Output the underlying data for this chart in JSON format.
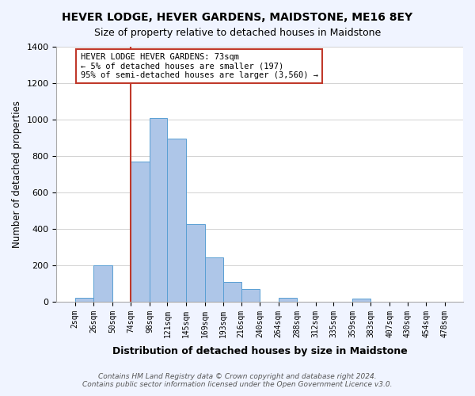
{
  "title": "HEVER LODGE, HEVER GARDENS, MAIDSTONE, ME16 8EY",
  "subtitle": "Size of property relative to detached houses in Maidstone",
  "xlabel": "Distribution of detached houses by size in Maidstone",
  "ylabel": "Number of detached properties",
  "bin_labels": [
    "2sqm",
    "26sqm",
    "50sqm",
    "74sqm",
    "98sqm",
    "121sqm",
    "145sqm",
    "169sqm",
    "193sqm",
    "216sqm",
    "240sqm",
    "264sqm",
    "288sqm",
    "312sqm",
    "335sqm",
    "359sqm",
    "383sqm",
    "407sqm",
    "430sqm",
    "454sqm",
    "478sqm"
  ],
  "bin_edges": [
    2,
    26,
    50,
    74,
    98,
    121,
    145,
    169,
    193,
    216,
    240,
    264,
    288,
    312,
    335,
    359,
    383,
    407,
    430,
    454,
    478
  ],
  "bar_heights": [
    20,
    200,
    0,
    770,
    1010,
    895,
    425,
    245,
    110,
    70,
    0,
    20,
    0,
    0,
    0,
    15,
    0,
    0,
    0,
    0
  ],
  "bar_color": "#aec6e8",
  "bar_edge_color": "#5a9fd4",
  "vline_x": 74,
  "vline_color": "#c0392b",
  "ylim": [
    0,
    1400
  ],
  "yticks": [
    0,
    200,
    400,
    600,
    800,
    1000,
    1200,
    1400
  ],
  "annotation_title": "HEVER LODGE HEVER GARDENS: 73sqm",
  "annotation_line1": "← 5% of detached houses are smaller (197)",
  "annotation_line2": "95% of semi-detached houses are larger (3,560) →",
  "footer1": "Contains HM Land Registry data © Crown copyright and database right 2024.",
  "footer2": "Contains public sector information licensed under the Open Government Licence v3.0.",
  "bg_color": "#f0f4ff",
  "plot_bg_color": "#ffffff"
}
